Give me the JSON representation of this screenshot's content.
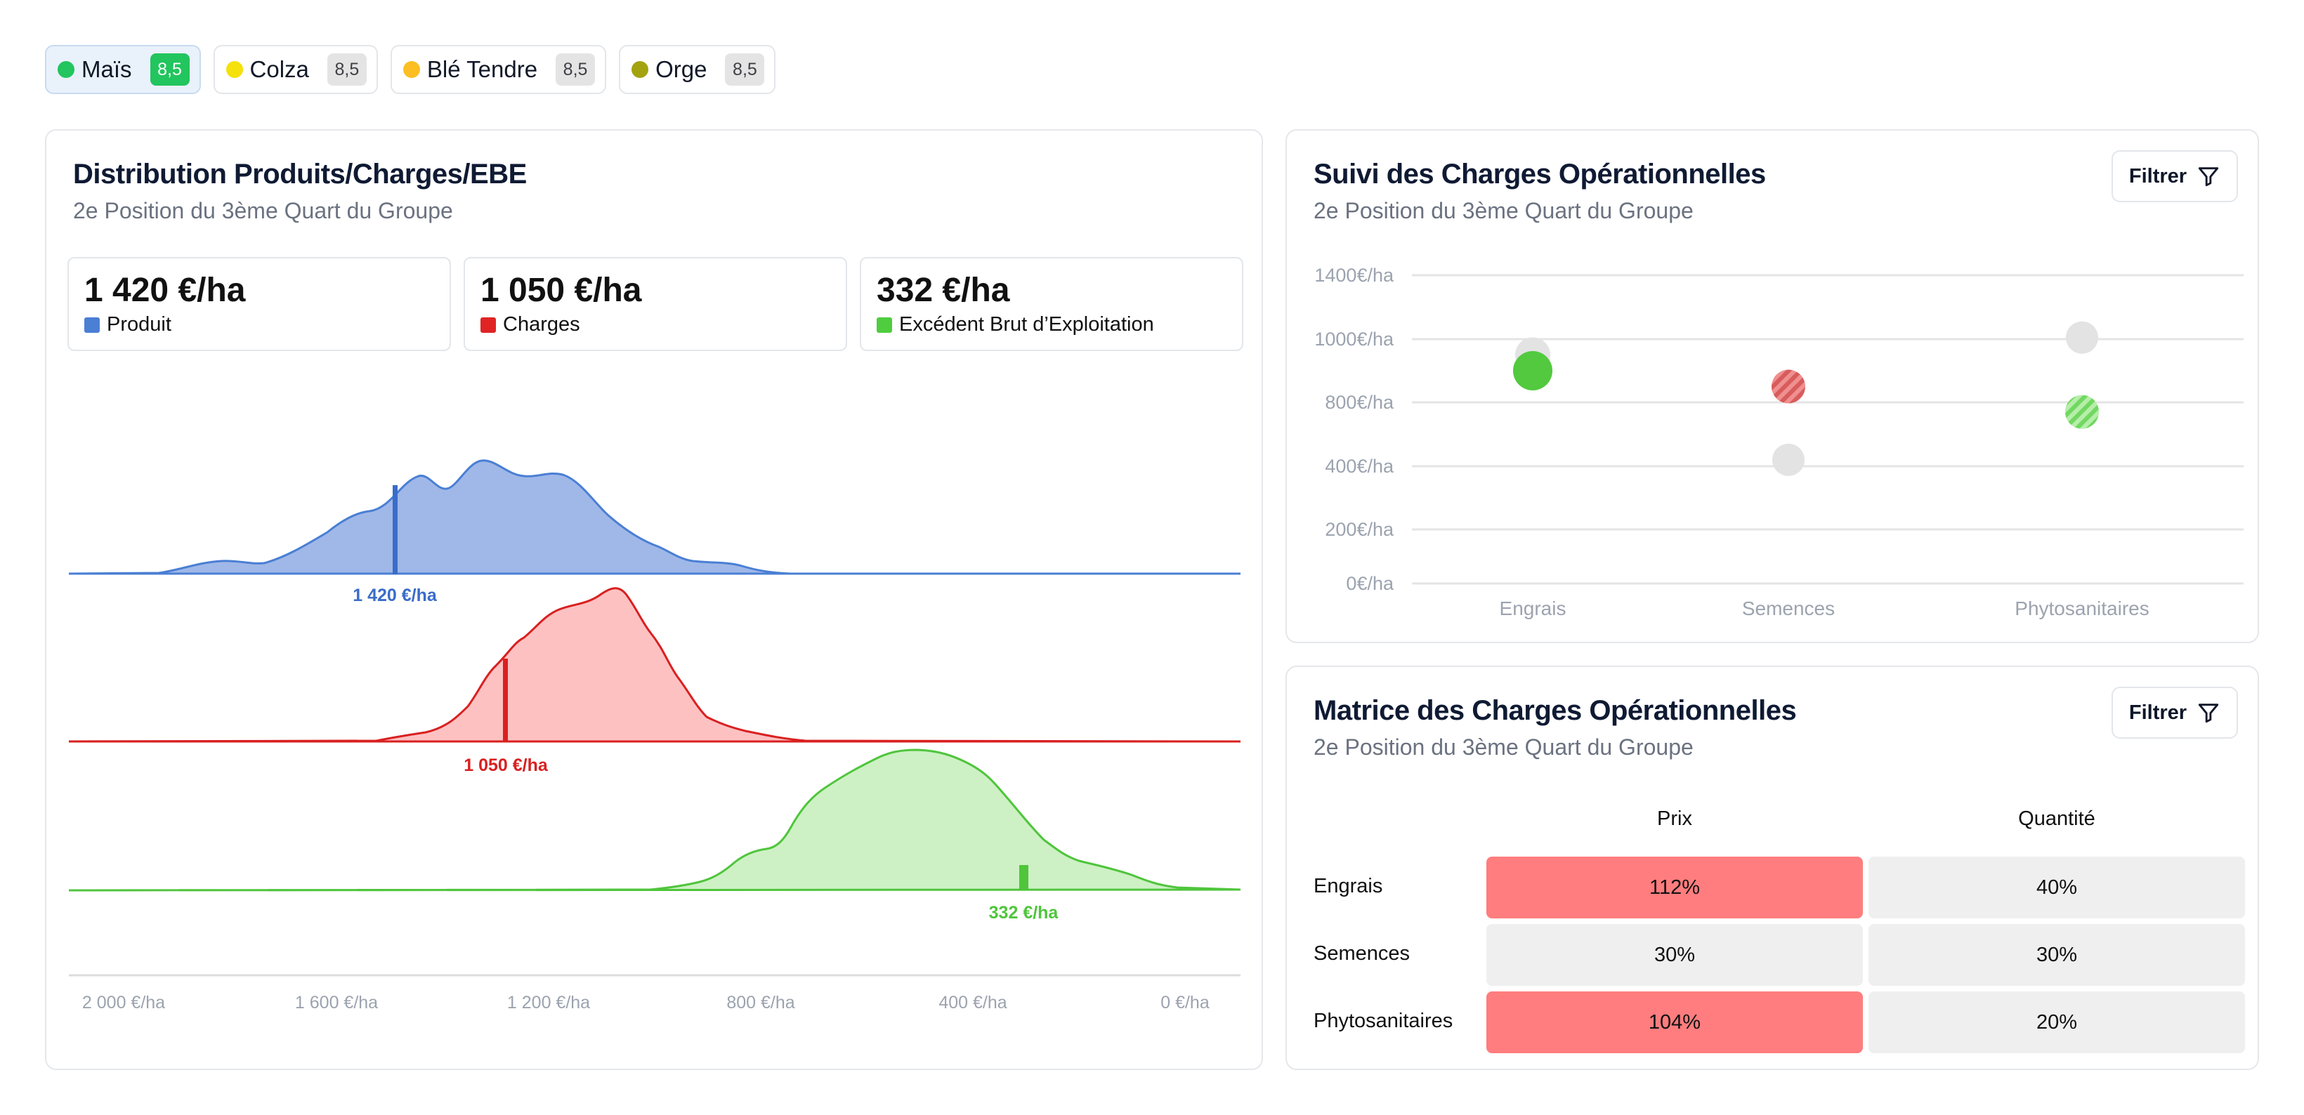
{
  "crops": [
    {
      "name": "Maïs",
      "badge": "8,5",
      "color": "#22c55e",
      "active": true
    },
    {
      "name": "Colza",
      "badge": "8,5",
      "color": "#f5e10b",
      "active": false
    },
    {
      "name": "Blé Tendre",
      "badge": "8,5",
      "color": "#fbbf24",
      "active": false
    },
    {
      "name": "Orge",
      "badge": "8,5",
      "color": "#a3a310",
      "active": false
    }
  ],
  "distribution": {
    "title": "Distribution Produits/Charges/EBE",
    "subtitle": "2e Position du 3ème Quart du Groupe",
    "stats": [
      {
        "value": "1 420 €/ha",
        "label": "Produit",
        "color": "#4a7fd4"
      },
      {
        "value": "1 050 €/ha",
        "label": "Charges",
        "color": "#e02424"
      },
      {
        "value": "332 €/ha",
        "label": "Excédent Brut d’Exploitation",
        "color": "#4fcd3f"
      }
    ],
    "markers": [
      "1 420 €/ha",
      "1 050 €/ha",
      "332 €/ha"
    ],
    "axis_ticks": [
      "2 000 €/ha",
      "1 600 €/ha",
      "1 200 €/ha",
      "800 €/ha",
      "400 €/ha",
      "0 €/ha"
    ]
  },
  "suivi": {
    "title": "Suivi des Charges Opérationnelles",
    "subtitle": "2e Position du 3ème Quart du Groupe",
    "filter_label": "Filtrer"
  },
  "chart_data": {
    "type": "scatter",
    "categories": [
      "Engrais",
      "Semences",
      "Phytosanitaires"
    ],
    "y_ticks": [
      "1400€/ha",
      "1000€/ha",
      "800€/ha",
      "400€/ha",
      "200€/ha",
      "0€/ha"
    ],
    "series": [
      {
        "values": [
          950,
          440,
          1010
        ],
        "color": "#e3e3e3"
      },
      {
        "values": [
          900,
          850,
          740
        ],
        "color": "#4fcd3f"
      }
    ],
    "grid": true
  },
  "matrice": {
    "title": "Matrice des Charges Opérationnelles",
    "subtitle": "2e Position du 3ème Quart du Groupe",
    "filter_label": "Filtrer",
    "columns": [
      "Prix",
      "Quantité"
    ],
    "rows": [
      {
        "label": "Engrais",
        "prix": "112%",
        "quantite": "40%",
        "prix_high": true
      },
      {
        "label": "Semences",
        "prix": "30%",
        "quantite": "30%",
        "prix_high": false
      },
      {
        "label": "Phytosanitaires",
        "prix": "104%",
        "quantite": "20%",
        "prix_high": true
      }
    ]
  }
}
